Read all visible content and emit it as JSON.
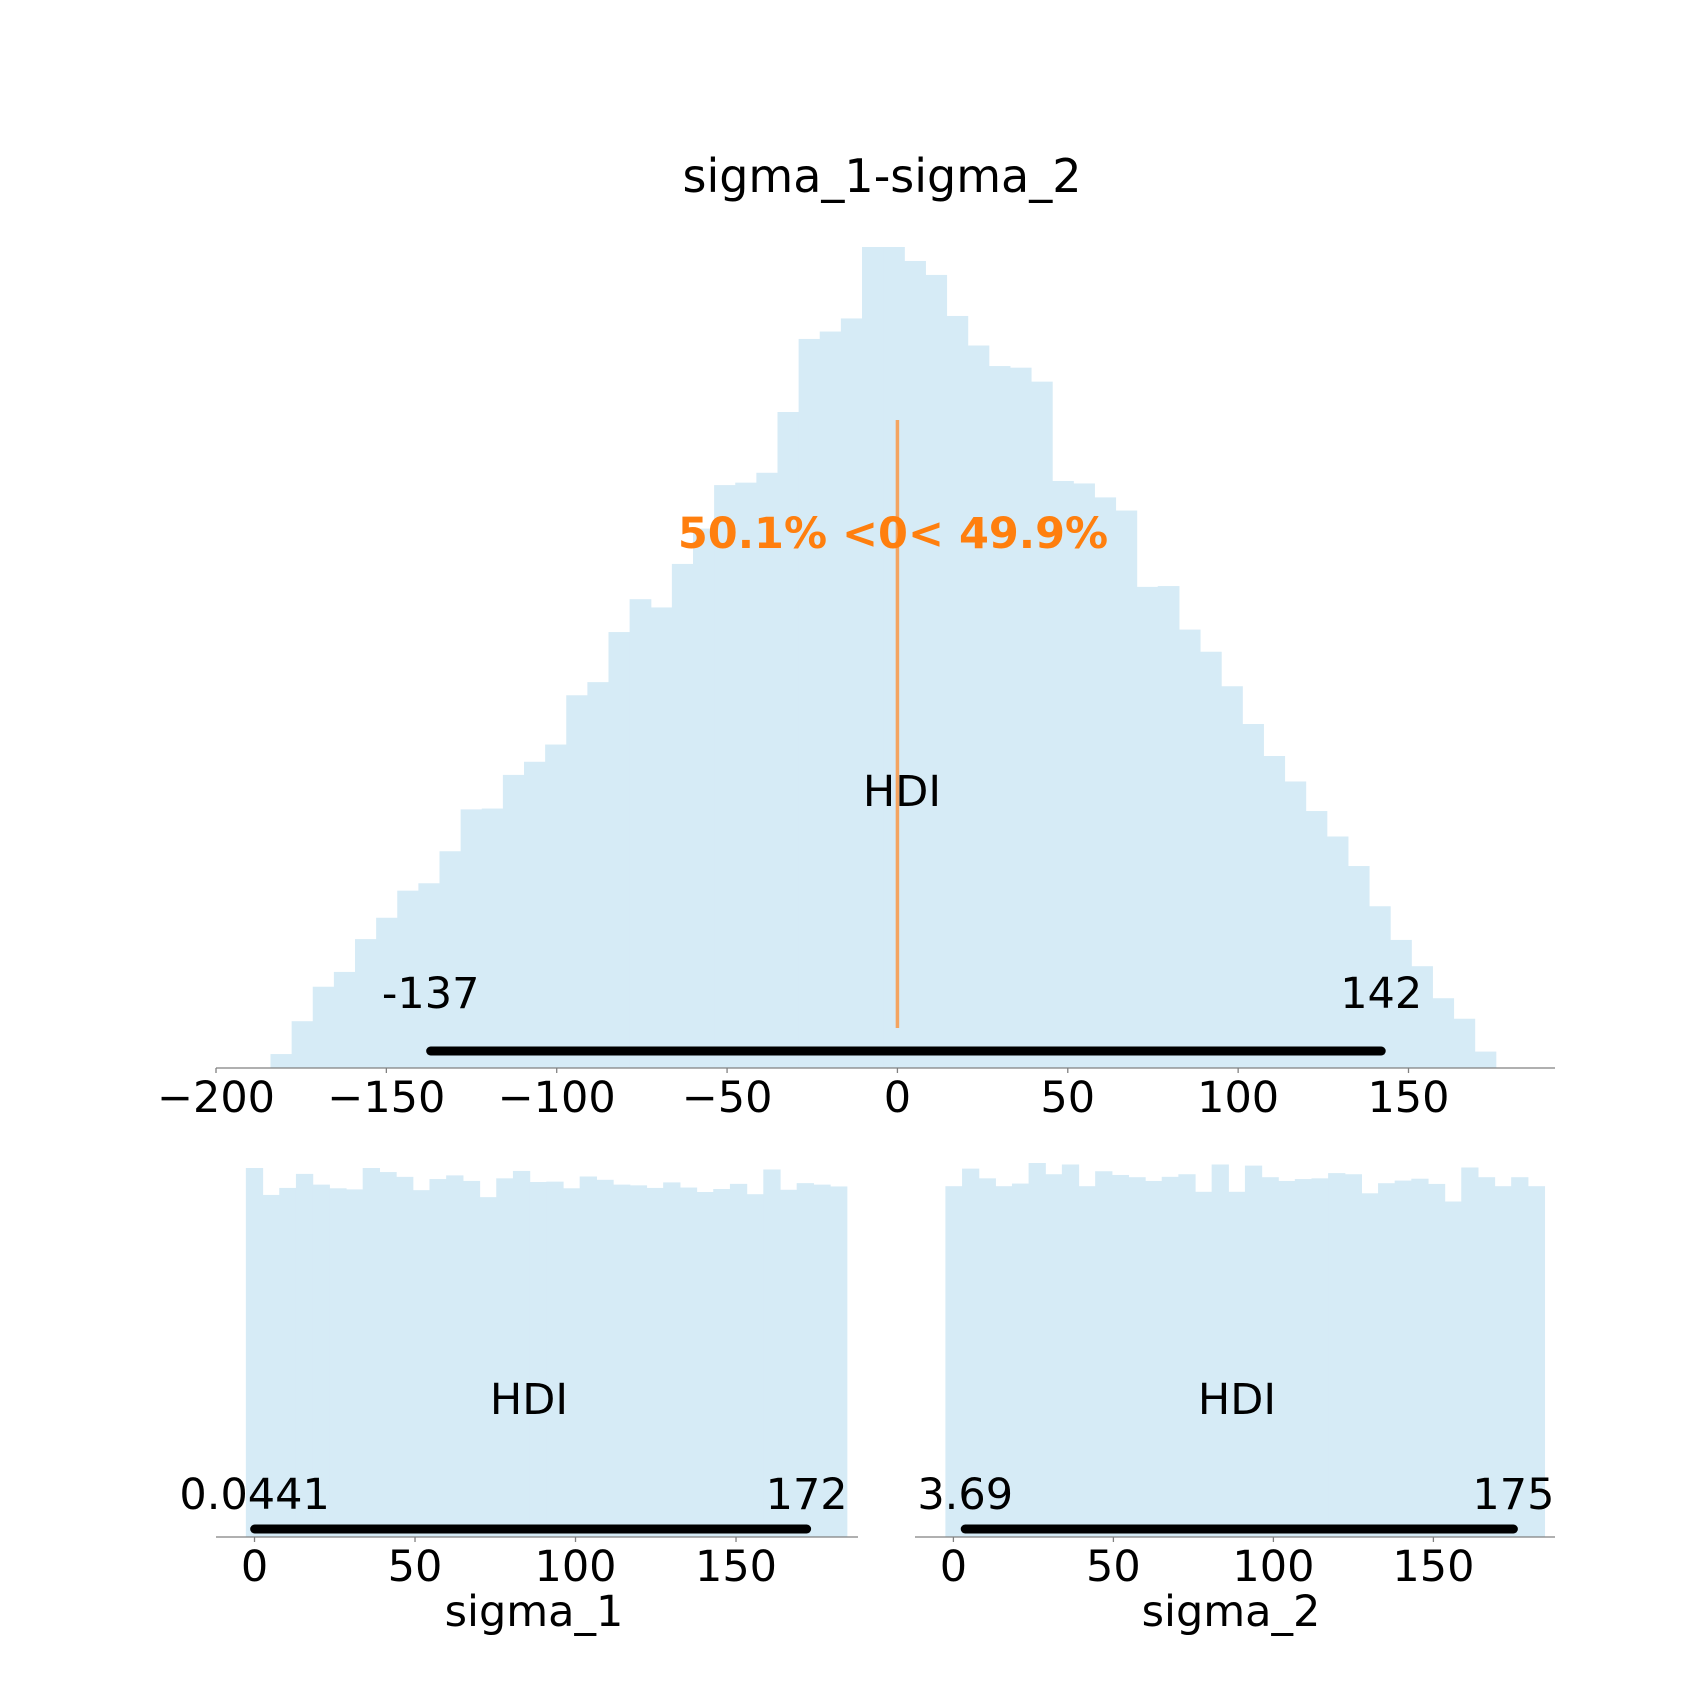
{
  "colors": {
    "hist_fill": "#d6ebf6",
    "hdi_bar": "#000000",
    "ref_line": "#f4a460",
    "ref_text": "#ff7f0e",
    "axis": "#808080",
    "text": "#000000"
  },
  "chart_data": [
    {
      "type": "histogram",
      "title": "sigma_1-sigma_2",
      "xlabel": "",
      "xlim": [
        -200,
        193
      ],
      "xticks": [
        -200,
        -150,
        -100,
        -50,
        0,
        50,
        100,
        150
      ],
      "xtick_labels": [
        "−200",
        "−150",
        "−100",
        "−50",
        "0",
        "50",
        "100",
        "150"
      ],
      "bin_start": -184,
      "bin_width": 6.2,
      "bin_heights": [
        1.7,
        5.7,
        9.9,
        11.7,
        15.7,
        18.3,
        21.6,
        22.5,
        26.4,
        31.5,
        31.6,
        35.7,
        37.3,
        39.4,
        45.4,
        47.0,
        53.1,
        57.1,
        56.1,
        61.4,
        65.7,
        71.0,
        71.3,
        72.5,
        79.9,
        88.8,
        89.7,
        91.3,
        100.0,
        100.0,
        98.3,
        96.6,
        91.6,
        88.0,
        85.5,
        85.3,
        83.6,
        71.5,
        71.2,
        69.5,
        67.9,
        58.6,
        58.7,
        53.4,
        50.7,
        46.5,
        41.9,
        38.0,
        34.9,
        31.3,
        28.2,
        24.6,
        19.7,
        15.6,
        12.4,
        8.5,
        6.0,
        2.0
      ],
      "hdi_label": "HDI",
      "hdi": [
        -137,
        142
      ],
      "hdi_labels": [
        "-137",
        "142"
      ],
      "ref_value": 0,
      "ref_text": "50.1% <0< 49.9%"
    },
    {
      "type": "histogram",
      "title": "",
      "xlabel": "sigma_1",
      "xlim": [
        -12,
        188
      ],
      "xticks": [
        0,
        50,
        100,
        150
      ],
      "xtick_labels": [
        "0",
        "50",
        "100",
        "150"
      ],
      "bin_start": -2.7,
      "bin_width": 5.2,
      "bin_heights": [
        100,
        92.7,
        94.6,
        98.4,
        95.5,
        94.5,
        94.2,
        100,
        98.9,
        97.6,
        94.0,
        97.0,
        98.0,
        96.5,
        92.1,
        97.2,
        99.2,
        96.2,
        96.3,
        94.5,
        97.7,
        96.8,
        95.5,
        95.3,
        94.6,
        96.1,
        94.7,
        93.5,
        94.3,
        95.7,
        92.9,
        99.6,
        94.1,
        95.9,
        95.5,
        95.0
      ],
      "hdi_label": "HDI",
      "hdi": [
        0.0441,
        172
      ],
      "hdi_labels": [
        "0.0441",
        "172"
      ]
    },
    {
      "type": "histogram",
      "title": "",
      "xlabel": "sigma_2",
      "xlim": [
        -12,
        188
      ],
      "xticks": [
        0,
        50,
        100,
        150
      ],
      "xtick_labels": [
        "0",
        "50",
        "100",
        "150"
      ],
      "bin_start": -2.5,
      "bin_width": 5.2,
      "bin_heights": [
        93.8,
        98.5,
        95.9,
        93.8,
        94.5,
        100,
        97.0,
        99.6,
        93.8,
        97.8,
        96.8,
        96.2,
        95.2,
        96.3,
        97.0,
        92.3,
        99.6,
        92.3,
        99.3,
        96.2,
        95.2,
        95.7,
        95.9,
        97.3,
        97.0,
        91.9,
        94.6,
        95.3,
        95.8,
        94.4,
        89.7,
        98.8,
        96.2,
        93.8,
        96.2,
        93.8
      ],
      "hdi_label": "HDI",
      "hdi": [
        3.69,
        175
      ],
      "hdi_labels": [
        "3.69",
        "175"
      ]
    }
  ]
}
